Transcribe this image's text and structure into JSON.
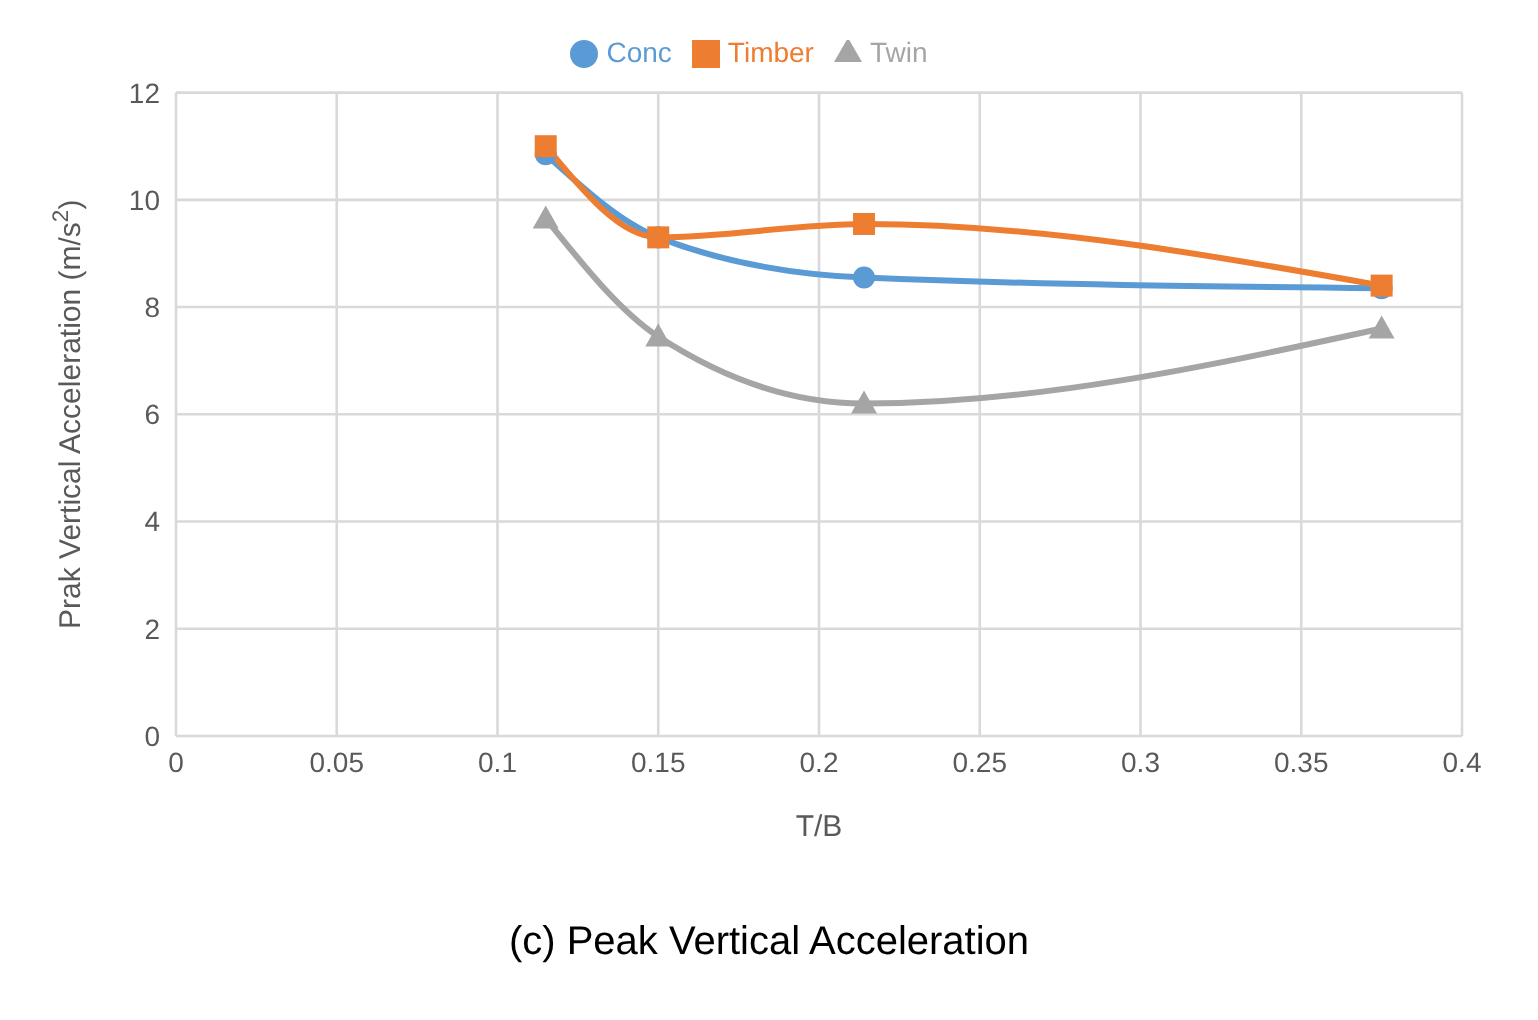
{
  "chart_data": {
    "type": "line",
    "title": "(c) Peak Vertical Acceleration",
    "xlabel": "T/B",
    "ylabel": "Prak Vertical Acceleration (m/s$^{2}$)",
    "x": [
      0.115,
      0.15,
      0.214,
      0.375
    ],
    "series": [
      {
        "name": "Conc",
        "color": "#5b9bd5",
        "marker": "circle",
        "values": [
          10.85,
          9.3,
          8.55,
          8.35
        ]
      },
      {
        "name": "Timber",
        "color": "#ed7d31",
        "marker": "square",
        "values": [
          11.0,
          9.3,
          9.55,
          8.4
        ]
      },
      {
        "name": "Twin",
        "color": "#a5a5a5",
        "marker": "triangle",
        "values": [
          9.65,
          7.45,
          6.2,
          7.6
        ]
      }
    ],
    "xlim": [
      0,
      0.4
    ],
    "xticks": [
      0,
      0.05,
      0.1,
      0.15,
      0.2,
      0.25,
      0.3,
      0.35,
      0.4
    ],
    "ylim": [
      0,
      12
    ],
    "yticks": [
      0,
      2,
      4,
      6,
      8,
      10,
      12
    ],
    "grid": true,
    "legend": "top",
    "line_style": "solid"
  }
}
